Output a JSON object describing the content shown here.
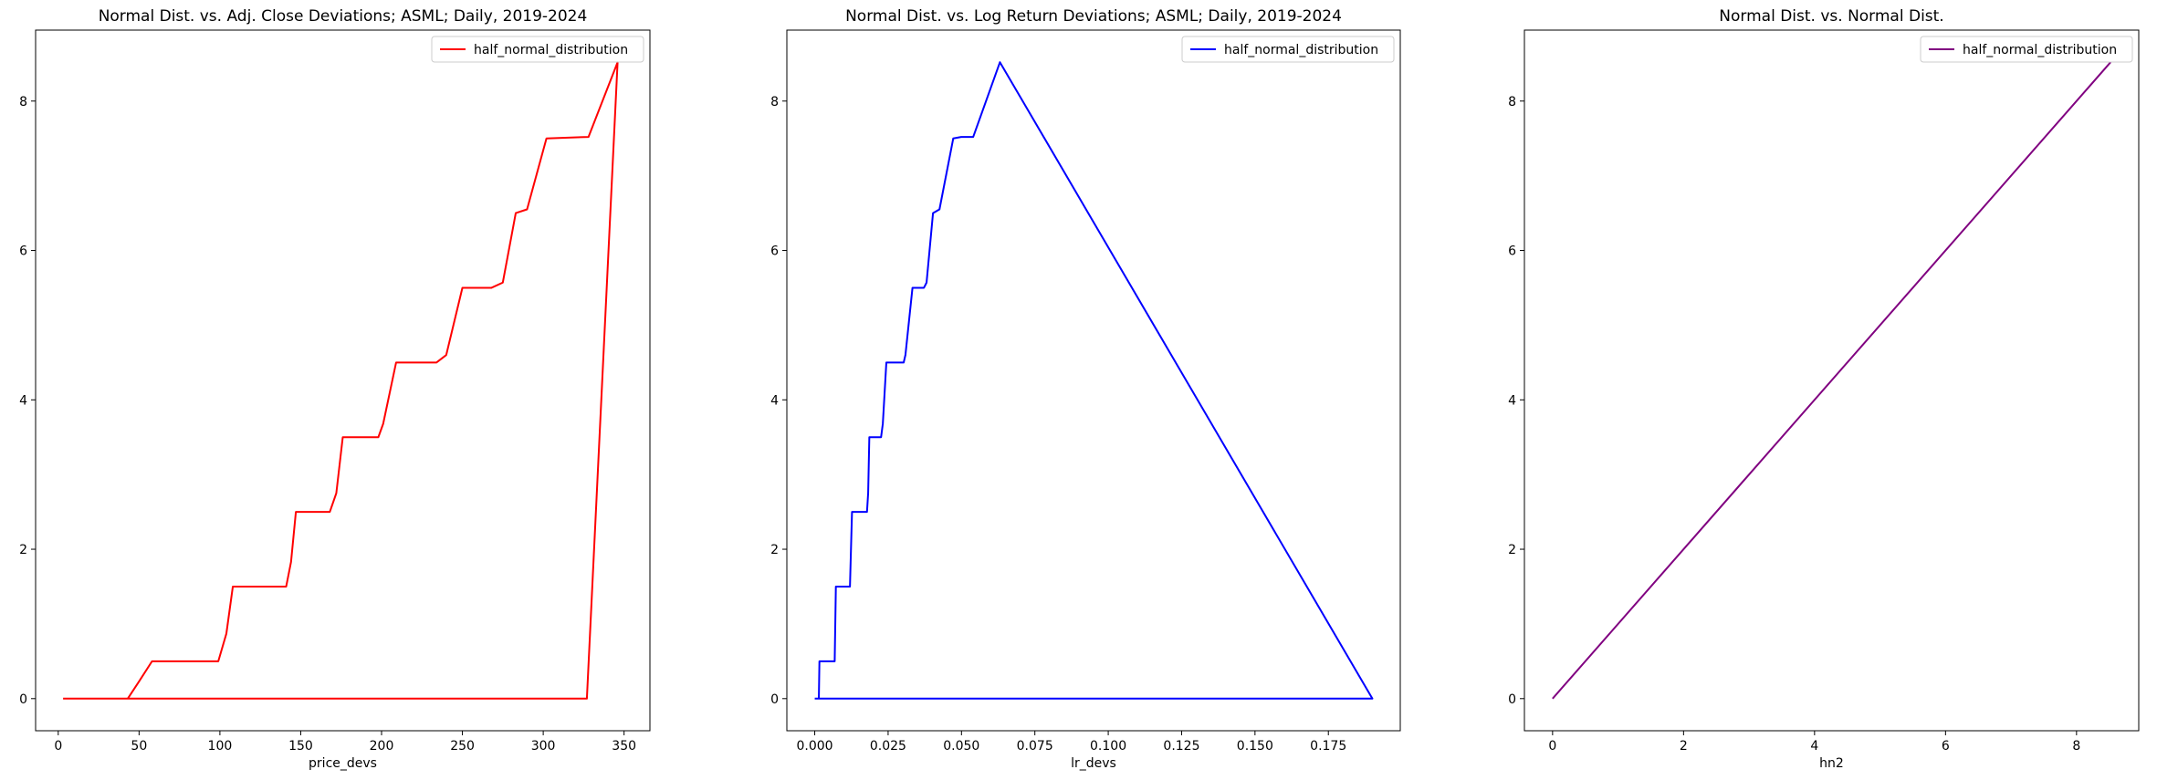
{
  "figure": {
    "background": "#ffffff"
  },
  "chart_data": [
    {
      "type": "line",
      "title": "Normal Dist. vs. Adj. Close Deviations; ASML; Daily, 2019-2024",
      "xlabel": "price_devs",
      "ylabel": "",
      "xlim": [
        -14,
        366
      ],
      "ylim": [
        -0.43,
        8.95
      ],
      "xticks": [
        0,
        50,
        100,
        150,
        200,
        250,
        300,
        350
      ],
      "yticks": [
        0,
        2,
        4,
        6,
        8
      ],
      "legend": {
        "position": "upper-right",
        "entries": [
          "half_normal_distribution"
        ]
      },
      "grid": false,
      "series": [
        {
          "name": "half_normal_distribution",
          "color": "#ff0000",
          "x": [
            3,
            43,
            50,
            58,
            99,
            104,
            108,
            141,
            144,
            147,
            168,
            172,
            176,
            198,
            201,
            209,
            234,
            240,
            250,
            268,
            275,
            283,
            290,
            302,
            328,
            346,
            327,
            3
          ],
          "y": [
            0.0,
            0.0,
            0.23,
            0.5,
            0.5,
            0.87,
            1.5,
            1.5,
            1.83,
            2.5,
            2.5,
            2.75,
            3.5,
            3.5,
            3.68,
            4.5,
            4.5,
            4.6,
            5.5,
            5.5,
            5.57,
            6.5,
            6.55,
            7.5,
            7.52,
            8.52,
            0.0,
            0.0
          ]
        }
      ]
    },
    {
      "type": "line",
      "title": "Normal Dist. vs. Log Return Deviations; ASML; Daily, 2019-2024",
      "xlabel": "lr_devs",
      "ylabel": "",
      "xlim": [
        -0.0095,
        0.1995
      ],
      "ylim": [
        -0.43,
        8.95
      ],
      "xticks": [
        0.0,
        0.025,
        0.05,
        0.075,
        0.1,
        0.125,
        0.15,
        0.175
      ],
      "xtick_labels": [
        "0.000",
        "0.025",
        "0.050",
        "0.075",
        "0.100",
        "0.125",
        "0.150",
        "0.175"
      ],
      "yticks": [
        0,
        2,
        4,
        6,
        8
      ],
      "legend": {
        "position": "upper-right",
        "entries": [
          "half_normal_distribution"
        ]
      },
      "grid": false,
      "series": [
        {
          "name": "half_normal_distribution",
          "color": "#0000ff",
          "x": [
            0.0,
            0.0014,
            0.0016,
            0.0068,
            0.0072,
            0.012,
            0.0127,
            0.0178,
            0.0182,
            0.0186,
            0.0226,
            0.0232,
            0.0244,
            0.0303,
            0.0309,
            0.0333,
            0.0372,
            0.0381,
            0.0403,
            0.0425,
            0.0472,
            0.0499,
            0.054,
            0.0631,
            0.19,
            0.0
          ],
          "y": [
            0.0,
            0.0,
            0.5,
            0.5,
            1.5,
            1.5,
            2.5,
            2.5,
            2.75,
            3.5,
            3.5,
            3.68,
            4.5,
            4.5,
            4.6,
            5.5,
            5.5,
            5.57,
            6.5,
            6.55,
            7.5,
            7.52,
            7.52,
            8.52,
            0.0,
            0.0
          ]
        }
      ]
    },
    {
      "type": "line",
      "title": "Normal Dist. vs. Normal Dist.",
      "xlabel": "hn2",
      "ylabel": "",
      "xlim": [
        -0.43,
        8.95
      ],
      "ylim": [
        -0.43,
        8.95
      ],
      "xticks": [
        0,
        2,
        4,
        6,
        8
      ],
      "yticks": [
        0,
        2,
        4,
        6,
        8
      ],
      "legend": {
        "position": "upper-right",
        "entries": [
          "half_normal_distribution"
        ]
      },
      "grid": false,
      "series": [
        {
          "name": "half_normal_distribution",
          "color": "#800080",
          "x": [
            0.0,
            8.52
          ],
          "y": [
            0.0,
            8.52
          ]
        }
      ]
    }
  ]
}
